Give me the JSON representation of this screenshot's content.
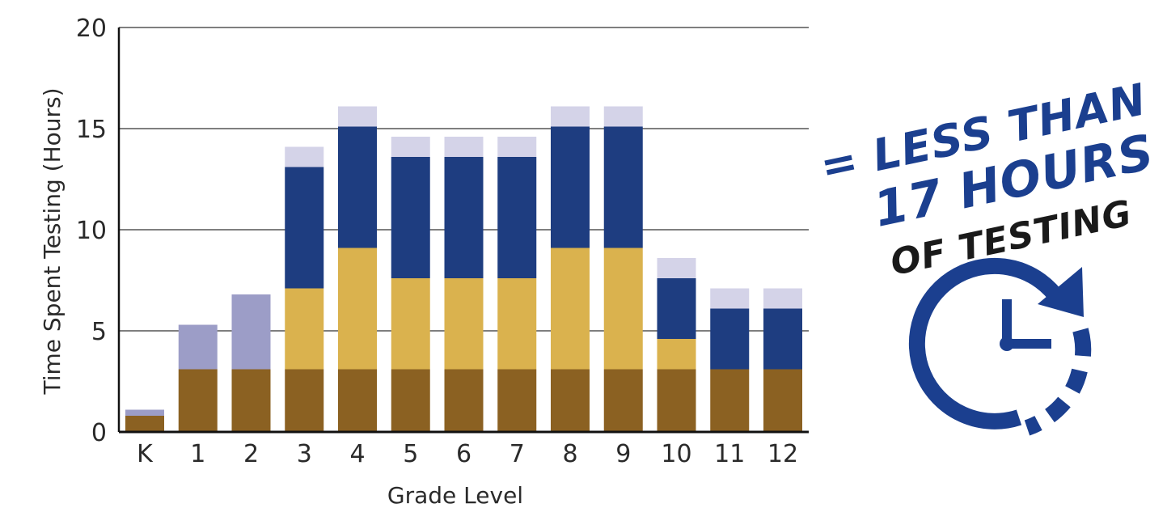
{
  "chart_data": {
    "type": "bar",
    "stacked": true,
    "title": "",
    "xlabel": "Grade Level",
    "ylabel": "Time Spent Testing (Hours)",
    "ylim": [
      0,
      20
    ],
    "yticks": [
      0,
      5,
      10,
      15,
      20
    ],
    "grid": true,
    "legend": "none",
    "categories": [
      "K",
      "1",
      "2",
      "3",
      "4",
      "5",
      "6",
      "7",
      "8",
      "9",
      "10",
      "11",
      "12"
    ],
    "series": [
      {
        "color": "#8b6122",
        "values": [
          0.8,
          3.1,
          3.1,
          3.1,
          3.1,
          3.1,
          3.1,
          3.1,
          3.1,
          3.1,
          3.1,
          3.1,
          3.1
        ]
      },
      {
        "color": "#dab24e",
        "values": [
          0,
          0,
          0,
          4.0,
          6.0,
          4.5,
          4.5,
          4.5,
          6.0,
          6.0,
          1.5,
          0,
          0
        ]
      },
      {
        "color": "#1e3d80",
        "values": [
          0,
          0,
          0,
          6.0,
          6.0,
          6.0,
          6.0,
          6.0,
          6.0,
          6.0,
          3.0,
          3.0,
          3.0
        ]
      },
      {
        "color": "#9c9dc7",
        "values": [
          0.3,
          2.2,
          3.7,
          0,
          0,
          0,
          0,
          0,
          0,
          0,
          0,
          0,
          0
        ]
      },
      {
        "color": "#d4d3e8",
        "values": [
          0,
          0,
          0,
          1.0,
          1.0,
          1.0,
          1.0,
          1.0,
          1.0,
          1.0,
          1.0,
          1.0,
          1.0
        ]
      }
    ]
  },
  "callout": {
    "line1": "= LESS THAN",
    "line2": "17 HOURS",
    "line3": "OF TESTING",
    "blue_color": "#1b3f8f",
    "black_color": "#1a1a1a",
    "icon": "timer-clock-icon"
  }
}
